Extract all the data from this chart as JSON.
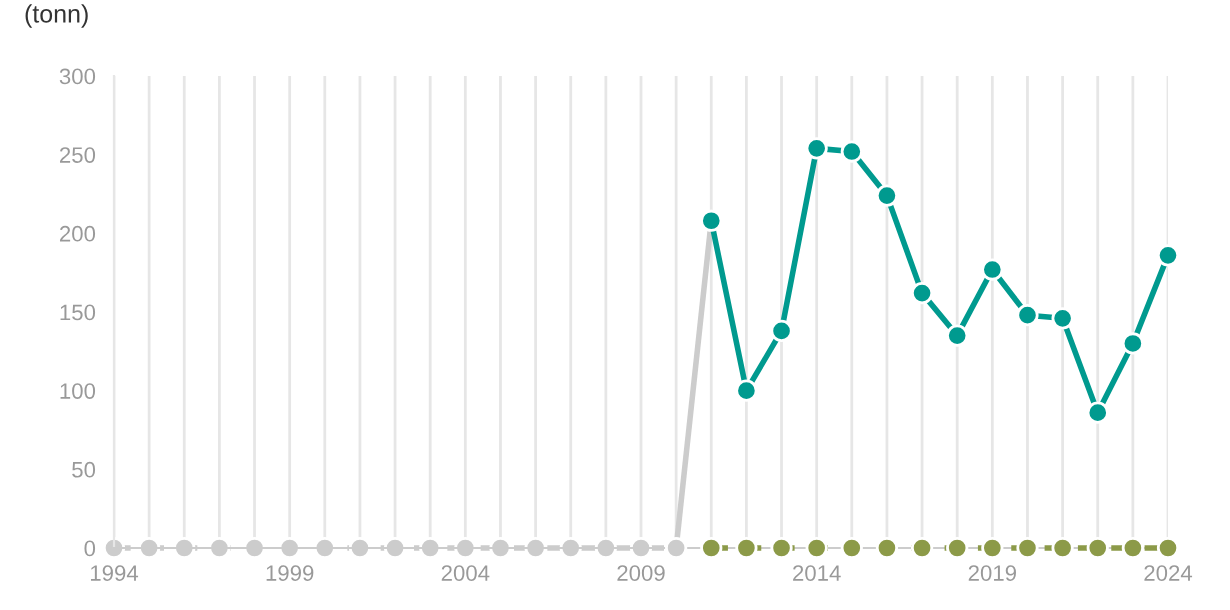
{
  "chart_data": {
    "type": "line",
    "ylabel": "(tonn)",
    "xlim": [
      1994,
      2024
    ],
    "ylim": [
      0,
      300
    ],
    "yticks": [
      0,
      50,
      100,
      150,
      200,
      250,
      300
    ],
    "xticks": [
      1994,
      {
        "value": 1995,
        "label": null
      },
      {
        "value": 1996,
        "label": null
      },
      {
        "value": 1997,
        "label": null
      },
      {
        "value": 1998,
        "label": null
      },
      1999,
      {
        "value": 2000,
        "label": null
      },
      {
        "value": 2001,
        "label": null
      },
      {
        "value": 2002,
        "label": null
      },
      {
        "value": 2003,
        "label": null
      },
      2004,
      {
        "value": 2005,
        "label": null
      },
      {
        "value": 2006,
        "label": null
      },
      {
        "value": 2007,
        "label": null
      },
      {
        "value": 2008,
        "label": null
      },
      2009,
      {
        "value": 2010,
        "label": null
      },
      {
        "value": 2011,
        "label": null
      },
      {
        "value": 2012,
        "label": null
      },
      {
        "value": 2013,
        "label": null
      },
      2014,
      {
        "value": 2015,
        "label": null
      },
      {
        "value": 2016,
        "label": null
      },
      {
        "value": 2017,
        "label": null
      },
      {
        "value": 2018,
        "label": null
      },
      2019,
      {
        "value": 2020,
        "label": null
      },
      {
        "value": 2021,
        "label": null
      },
      {
        "value": 2022,
        "label": null
      },
      {
        "value": 2023,
        "label": null
      },
      2024
    ],
    "grid": "x",
    "marker": "circle",
    "series": [
      {
        "color": "#cccccc",
        "line_style": "dashed",
        "x": [
          1994,
          1995,
          1996,
          1997,
          1998,
          1999,
          2000,
          2001,
          2002,
          2003,
          2004,
          2005,
          2006,
          2007,
          2008,
          2009,
          2010
        ],
        "values": [
          0,
          0,
          0,
          0,
          0,
          0,
          0,
          0,
          0,
          0,
          0,
          0,
          0,
          0,
          0,
          0,
          0
        ]
      },
      {
        "color": "#cccccc",
        "line_style": "solid",
        "x": [
          2010,
          2011
        ],
        "values": [
          0,
          208
        ]
      },
      {
        "color": "#8c9a48",
        "line_style": "dashed",
        "x": [
          2011,
          2012,
          2013,
          2014,
          2015,
          2016,
          2017,
          2018,
          2019,
          2020,
          2021,
          2022,
          2023,
          2024
        ],
        "values": [
          0,
          0,
          0,
          0,
          0,
          0,
          0,
          0,
          0,
          0,
          0,
          0,
          0,
          0
        ]
      },
      {
        "color": "#009a8f",
        "line_style": "solid",
        "x": [
          2011,
          2012,
          2013,
          2014,
          2015,
          2016,
          2017,
          2018,
          2019,
          2020,
          2021,
          2022,
          2023,
          2024
        ],
        "values": [
          208,
          100,
          138,
          254,
          252,
          224,
          162,
          135,
          177,
          148,
          146,
          86,
          130,
          186
        ]
      }
    ]
  }
}
